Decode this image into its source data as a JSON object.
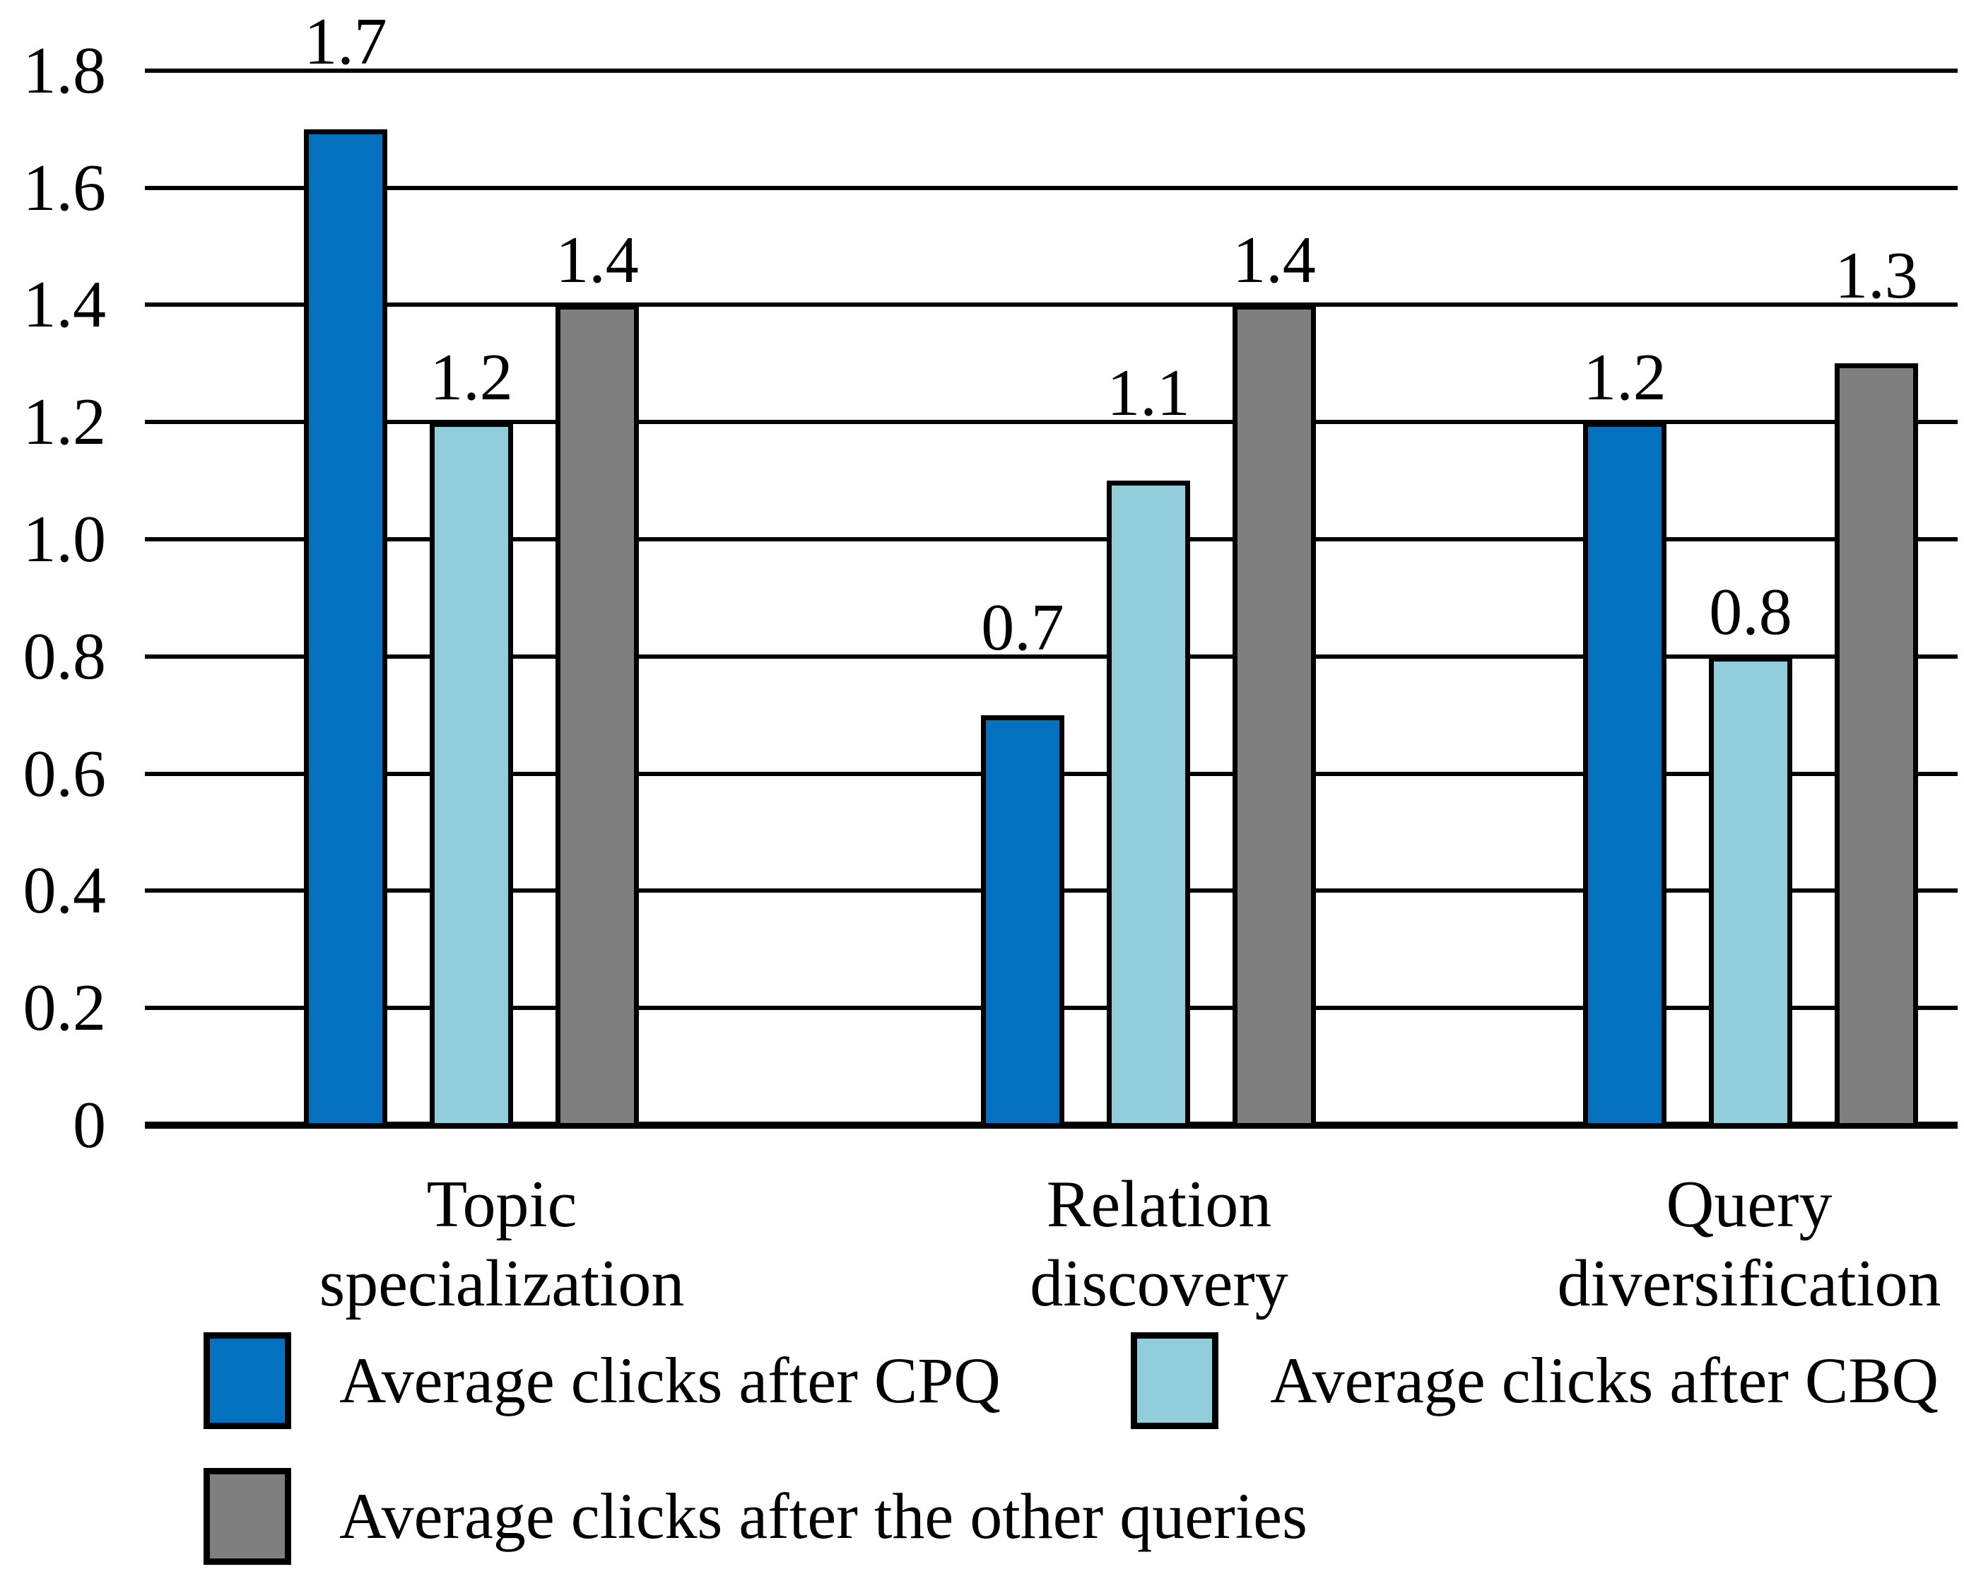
{
  "chart_data": {
    "type": "bar",
    "categories": [
      "Topic specialization",
      "Relation discovery",
      "Query diversification"
    ],
    "category_lines": [
      [
        "Topic",
        "specialization"
      ],
      [
        "Relation",
        "discovery"
      ],
      [
        "Query",
        "diversification"
      ]
    ],
    "series": [
      {
        "name": "Average clicks after CPQ",
        "color": "#0471BE",
        "values": [
          1.7,
          0.7,
          1.2
        ],
        "labels": [
          "1.7",
          "0.7",
          "1.2"
        ]
      },
      {
        "name": "Average clicks after CBQ",
        "color": "#92CDDC",
        "values": [
          1.2,
          1.1,
          0.8
        ],
        "labels": [
          "1.2",
          "1.1",
          "0.8"
        ]
      },
      {
        "name": "Average clicks after the other queries",
        "color": "#7F7F7F",
        "values": [
          1.4,
          1.4,
          1.3
        ],
        "labels": [
          "1.4",
          "1.4",
          "1.3"
        ]
      }
    ],
    "ylim": [
      0,
      1.8
    ],
    "ytick_step": 0.2,
    "ytick_labels": [
      "0",
      "0.2",
      "0.4",
      "0.6",
      "0.8",
      "1.0",
      "1.2",
      "1.4",
      "1.6",
      "1.8"
    ],
    "grid": true,
    "data_labels_shown": true,
    "legend_position": "bottom",
    "colors": {
      "bar_outline": "#000000",
      "gridline": "#000000",
      "text": "#000000",
      "background": "#FFFFFF"
    }
  }
}
